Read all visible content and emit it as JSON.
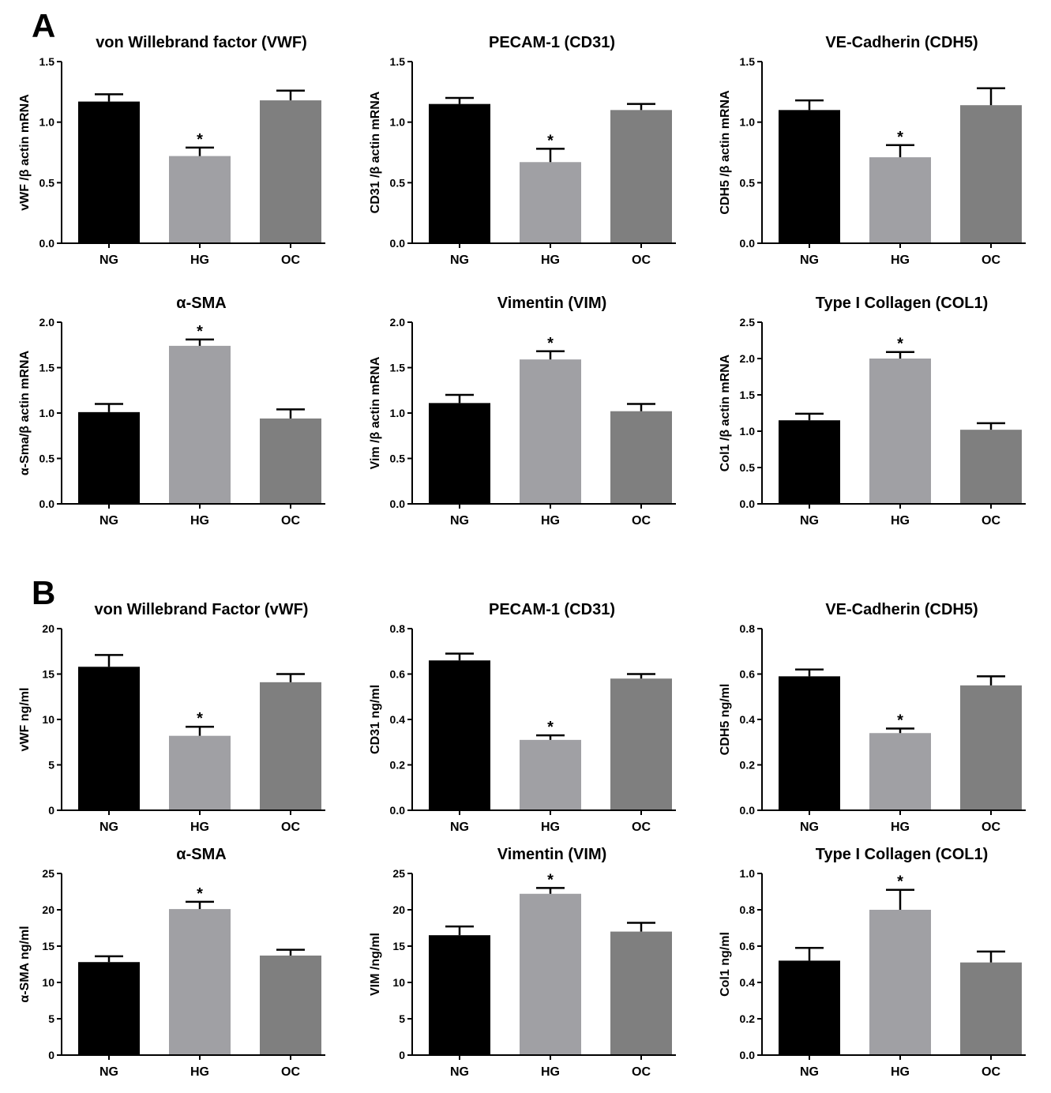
{
  "panel_labels": [
    "A",
    "B"
  ],
  "colors": {
    "NG": "#000000",
    "HG": "#a0a0a4",
    "OC": "#7f7f7f"
  },
  "chart_data": [
    {
      "type": "bar",
      "panel": "A",
      "title": "von Willebrand factor (VWF)",
      "ylabel": "vWF /β actin mRNA",
      "categories": [
        "NG",
        "HG",
        "OC"
      ],
      "values": [
        1.17,
        0.72,
        1.18
      ],
      "errors": [
        0.06,
        0.07,
        0.08
      ],
      "significant": [
        false,
        true,
        false
      ],
      "ylim": [
        0,
        1.5
      ],
      "yticks": [
        0.0,
        0.5,
        1.0,
        1.5
      ],
      "tick_decimals": 1
    },
    {
      "type": "bar",
      "panel": "A",
      "title": "PECAM-1 (CD31)",
      "ylabel": "CD31 /β actin mRNA",
      "categories": [
        "NG",
        "HG",
        "OC"
      ],
      "values": [
        1.15,
        0.67,
        1.1
      ],
      "errors": [
        0.05,
        0.11,
        0.05
      ],
      "significant": [
        false,
        true,
        false
      ],
      "ylim": [
        0,
        1.5
      ],
      "yticks": [
        0.0,
        0.5,
        1.0,
        1.5
      ],
      "tick_decimals": 1
    },
    {
      "type": "bar",
      "panel": "A",
      "title": "VE-Cadherin (CDH5)",
      "ylabel": "CDH5 /β actin mRNA",
      "categories": [
        "NG",
        "HG",
        "OC"
      ],
      "values": [
        1.1,
        0.71,
        1.14
      ],
      "errors": [
        0.08,
        0.1,
        0.14
      ],
      "significant": [
        false,
        true,
        false
      ],
      "ylim": [
        0,
        1.5
      ],
      "yticks": [
        0.0,
        0.5,
        1.0,
        1.5
      ],
      "tick_decimals": 1
    },
    {
      "type": "bar",
      "panel": "A",
      "title": "α-SMA",
      "ylabel": "α-Sma/β actin mRNA",
      "categories": [
        "NG",
        "HG",
        "OC"
      ],
      "values": [
        1.01,
        1.74,
        0.94
      ],
      "errors": [
        0.09,
        0.07,
        0.1
      ],
      "significant": [
        false,
        true,
        false
      ],
      "ylim": [
        0,
        2.0
      ],
      "yticks": [
        0.0,
        0.5,
        1.0,
        1.5,
        2.0
      ],
      "tick_decimals": 1
    },
    {
      "type": "bar",
      "panel": "A",
      "title": "Vimentin (VIM)",
      "ylabel": "Vim /β actin mRNA",
      "categories": [
        "NG",
        "HG",
        "OC"
      ],
      "values": [
        1.11,
        1.59,
        1.02
      ],
      "errors": [
        0.09,
        0.09,
        0.08
      ],
      "significant": [
        false,
        true,
        false
      ],
      "ylim": [
        0,
        2.0
      ],
      "yticks": [
        0.0,
        0.5,
        1.0,
        1.5,
        2.0
      ],
      "tick_decimals": 1
    },
    {
      "type": "bar",
      "panel": "A",
      "title": "Type I Collagen (COL1)",
      "ylabel": "Col1 /β actin mRNA",
      "categories": [
        "NG",
        "HG",
        "OC"
      ],
      "values": [
        1.15,
        2.0,
        1.02
      ],
      "errors": [
        0.09,
        0.09,
        0.09
      ],
      "significant": [
        false,
        true,
        false
      ],
      "ylim": [
        0,
        2.5
      ],
      "yticks": [
        0.0,
        0.5,
        1.0,
        1.5,
        2.0,
        2.5
      ],
      "tick_decimals": 1
    },
    {
      "type": "bar",
      "panel": "B",
      "title": "von Willebrand Factor (vWF)",
      "ylabel": "vWF ng/ml",
      "categories": [
        "NG",
        "HG",
        "OC"
      ],
      "values": [
        15.8,
        8.2,
        14.1
      ],
      "errors": [
        1.3,
        1.0,
        0.9
      ],
      "significant": [
        false,
        true,
        false
      ],
      "ylim": [
        0,
        20
      ],
      "yticks": [
        0,
        5,
        10,
        15,
        20
      ],
      "tick_decimals": 0
    },
    {
      "type": "bar",
      "panel": "B",
      "title": "PECAM-1 (CD31)",
      "ylabel": "CD31 ng/ml",
      "categories": [
        "NG",
        "HG",
        "OC"
      ],
      "values": [
        0.66,
        0.31,
        0.58
      ],
      "errors": [
        0.03,
        0.02,
        0.02
      ],
      "significant": [
        false,
        true,
        false
      ],
      "ylim": [
        0,
        0.8
      ],
      "yticks": [
        0.0,
        0.2,
        0.4,
        0.6,
        0.8
      ],
      "tick_decimals": 1
    },
    {
      "type": "bar",
      "panel": "B",
      "title": "VE-Cadherin (CDH5)",
      "ylabel": "CDH5 ng/ml",
      "categories": [
        "NG",
        "HG",
        "OC"
      ],
      "values": [
        0.59,
        0.34,
        0.55
      ],
      "errors": [
        0.03,
        0.02,
        0.04
      ],
      "significant": [
        false,
        true,
        false
      ],
      "ylim": [
        0,
        0.8
      ],
      "yticks": [
        0.0,
        0.2,
        0.4,
        0.6,
        0.8
      ],
      "tick_decimals": 1
    },
    {
      "type": "bar",
      "panel": "B",
      "title": "α-SMA",
      "ylabel": "α-SMA ng/ml",
      "categories": [
        "NG",
        "HG",
        "OC"
      ],
      "values": [
        12.8,
        20.1,
        13.7
      ],
      "errors": [
        0.8,
        1.0,
        0.8
      ],
      "significant": [
        false,
        true,
        false
      ],
      "ylim": [
        0,
        25
      ],
      "yticks": [
        0,
        5,
        10,
        15,
        20,
        25
      ],
      "tick_decimals": 0
    },
    {
      "type": "bar",
      "panel": "B",
      "title": "Vimentin (VIM)",
      "ylabel": "VIM /ng/ml",
      "categories": [
        "NG",
        "HG",
        "OC"
      ],
      "values": [
        16.5,
        22.2,
        17.0
      ],
      "errors": [
        1.2,
        0.8,
        1.2
      ],
      "significant": [
        false,
        true,
        false
      ],
      "ylim": [
        0,
        25
      ],
      "yticks": [
        0,
        5,
        10,
        15,
        20,
        25
      ],
      "tick_decimals": 0
    },
    {
      "type": "bar",
      "panel": "B",
      "title": "Type I Collagen (COL1)",
      "ylabel": "Col1 ng/ml",
      "categories": [
        "NG",
        "HG",
        "OC"
      ],
      "values": [
        0.52,
        0.8,
        0.51
      ],
      "errors": [
        0.07,
        0.11,
        0.06
      ],
      "significant": [
        false,
        true,
        false
      ],
      "ylim": [
        0,
        1.0
      ],
      "yticks": [
        0.0,
        0.2,
        0.4,
        0.6,
        0.8,
        1.0
      ],
      "tick_decimals": 1
    }
  ]
}
